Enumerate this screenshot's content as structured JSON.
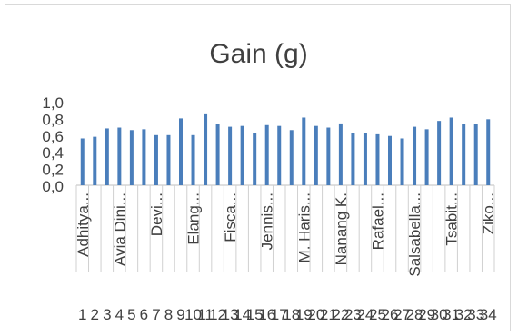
{
  "chart_data": {
    "type": "bar",
    "title": "Gain (g)",
    "ylim": [
      0,
      1.0
    ],
    "y_ticks": [
      "0,0",
      "0,2",
      "0,4",
      "0,6",
      "0,8",
      "1,0"
    ],
    "grid": false,
    "legend": "none",
    "bar_color": "#4a7ebb",
    "categories": [
      "1",
      "2",
      "3",
      "4",
      "5",
      "6",
      "7",
      "8",
      "9",
      "10",
      "11",
      "12",
      "13",
      "14",
      "15",
      "16",
      "17",
      "18",
      "19",
      "20",
      "21",
      "22",
      "23",
      "24",
      "25",
      "26",
      "27",
      "28",
      "29",
      "30",
      "31",
      "32",
      "33",
      "34"
    ],
    "category_labels": [
      "Adhitya...",
      "",
      "",
      "Avia Dini...",
      "",
      "",
      "Devi...",
      "",
      "",
      "Elang...",
      "",
      "",
      "Fisca...",
      "",
      "",
      "Jennis...",
      "",
      "",
      "M. Haris...",
      "",
      "",
      "Nanang K.",
      "",
      "",
      "Rafael...",
      "",
      "",
      "Salsabella...",
      "",
      "",
      "Tsabit...",
      "",
      "",
      "Ziko..."
    ],
    "values": [
      0.56,
      0.58,
      0.68,
      0.69,
      0.66,
      0.67,
      0.6,
      0.6,
      0.8,
      0.6,
      0.86,
      0.73,
      0.7,
      0.71,
      0.63,
      0.72,
      0.71,
      0.66,
      0.81,
      0.71,
      0.69,
      0.74,
      0.63,
      0.62,
      0.61,
      0.59,
      0.56,
      0.7,
      0.67,
      0.77,
      0.81,
      0.73,
      0.73,
      0.79
    ]
  }
}
